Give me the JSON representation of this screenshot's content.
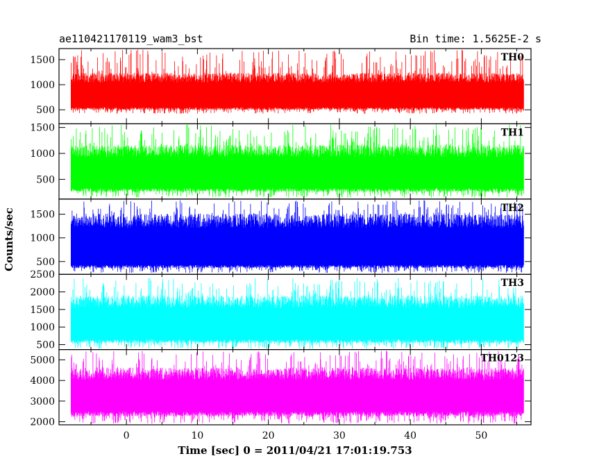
{
  "header": {
    "left_title": "ae110421170119_wam3_bst",
    "right_title": "Bin time: 1.5625E-2 s"
  },
  "chart_data": {
    "type": "line",
    "title": "ae110421170119_wam3_bst",
    "subtitle": "Bin time: 1.5625E-2 s",
    "xlabel": "Time [sec] 0 = 2011/04/21 17:01:19.753",
    "ylabel": "Counts/sec",
    "xlim": [
      -9.5,
      57
    ],
    "xticks": [
      0,
      10,
      20,
      30,
      40,
      50
    ],
    "data_range": [
      -7.8,
      56
    ],
    "panels": [
      {
        "name": "TH0",
        "color": "#ff0000",
        "ylim": [
          220,
          1720
        ],
        "yticks": [
          500,
          1000,
          1500
        ],
        "series_summary": {
          "baseline_min": 420,
          "typical_low": 550,
          "typical_high": 1100,
          "peak_max": 1700
        }
      },
      {
        "name": "TH1",
        "color": "#00ff00",
        "ylim": [
          120,
          1570
        ],
        "yticks": [
          500,
          1000,
          1500
        ],
        "series_summary": {
          "baseline_min": 150,
          "typical_low": 330,
          "typical_high": 1000,
          "peak_max": 1560
        }
      },
      {
        "name": "TH2",
        "color": "#0000ff",
        "ylim": [
          230,
          1820
        ],
        "yticks": [
          500,
          1000,
          1500
        ],
        "series_summary": {
          "baseline_min": 260,
          "typical_low": 430,
          "typical_high": 1300,
          "peak_max": 1800
        }
      },
      {
        "name": "TH3",
        "color": "#00ffff",
        "ylim": [
          360,
          2500
        ],
        "yticks": [
          500,
          1000,
          1500,
          2000,
          2500
        ],
        "series_summary": {
          "baseline_min": 380,
          "typical_low": 650,
          "typical_high": 1650,
          "peak_max": 2400
        }
      },
      {
        "name": "TH0123",
        "color": "#ff00ff",
        "ylim": [
          1850,
          5500
        ],
        "yticks": [
          2000,
          3000,
          4000,
          5000
        ],
        "series_summary": {
          "baseline_min": 1900,
          "typical_low": 2500,
          "typical_high": 4200,
          "peak_max": 5450
        }
      }
    ]
  }
}
